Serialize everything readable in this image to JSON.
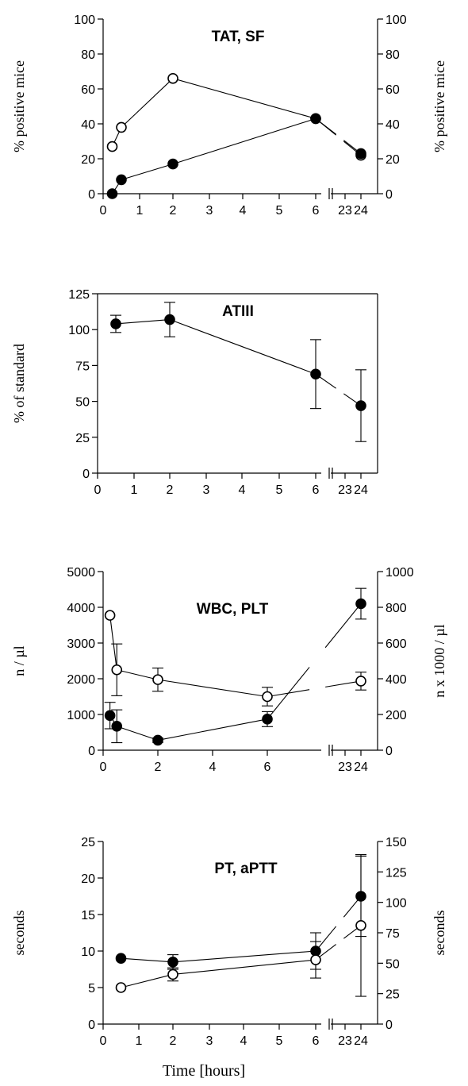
{
  "chart_data": [
    {
      "type": "line",
      "title": "TAT, SF",
      "ylabel": "% positive mice",
      "ylabel_right": "% positive mice",
      "ylim": [
        0,
        100
      ],
      "ylim_right": [
        0,
        100
      ],
      "yticks": [
        0,
        20,
        40,
        60,
        80,
        100
      ],
      "yticks_right": [
        0,
        20,
        40,
        60,
        80,
        100
      ],
      "xticks": [
        0,
        1,
        2,
        3,
        4,
        5,
        6,
        23,
        24
      ],
      "series": [
        {
          "marker": "open",
          "x": [
            0.25,
            0.5,
            2,
            6,
            24
          ],
          "y": [
            27,
            38,
            66,
            43,
            22
          ]
        },
        {
          "marker": "filled",
          "x": [
            0.25,
            0.5,
            2,
            6,
            24
          ],
          "y": [
            0,
            8,
            17,
            43,
            23
          ]
        }
      ]
    },
    {
      "type": "line",
      "title": "ATIII",
      "ylabel": "% of standard",
      "ylim": [
        0,
        125
      ],
      "yticks": [
        0,
        25,
        50,
        75,
        100,
        125
      ],
      "xticks": [
        0,
        1,
        2,
        3,
        4,
        5,
        6,
        23,
        24
      ],
      "series": [
        {
          "marker": "filled",
          "x": [
            0.5,
            2,
            6,
            24
          ],
          "y": [
            104,
            107,
            69,
            47
          ],
          "err": [
            6,
            12,
            24,
            25
          ]
        }
      ]
    },
    {
      "type": "line",
      "title": "WBC, PLT",
      "ylabel": "n / µl",
      "ylabel_right": "n x 1000 / µl",
      "ylim": [
        0,
        5000
      ],
      "ylim_right": [
        0,
        1000
      ],
      "yticks": [
        0,
        1000,
        2000,
        3000,
        4000,
        5000
      ],
      "yticks_right": [
        0,
        200,
        400,
        600,
        800,
        1000
      ],
      "xticks": [
        0,
        2,
        4,
        6,
        23,
        24
      ],
      "series": [
        {
          "marker": "filled",
          "axis": "left",
          "x": [
            0.25,
            0.5,
            2,
            6,
            24
          ],
          "y": [
            970,
            670,
            280,
            870,
            4100
          ],
          "err": [
            370,
            460,
            60,
            210,
            430
          ]
        },
        {
          "marker": "open",
          "axis": "right",
          "x": [
            0.25,
            0.5,
            2,
            6,
            24
          ],
          "y": [
            755,
            450,
            395,
            300,
            387
          ],
          "err": [
            0,
            145,
            65,
            52,
            50
          ]
        }
      ]
    },
    {
      "type": "line",
      "title": "PT, aPTT",
      "ylabel": "seconds",
      "ylabel_right": "seconds",
      "ylim": [
        0,
        25
      ],
      "ylim_right": [
        0,
        150
      ],
      "yticks": [
        0,
        5,
        10,
        15,
        20,
        25
      ],
      "yticks_right": [
        0,
        25,
        50,
        75,
        100,
        125,
        150
      ],
      "xticks": [
        0,
        1,
        2,
        3,
        4,
        5,
        6,
        23,
        24
      ],
      "series": [
        {
          "marker": "filled",
          "axis": "left",
          "x": [
            0.5,
            2,
            6,
            24
          ],
          "y": [
            9,
            8.5,
            10,
            17.5
          ],
          "err": [
            0,
            1,
            2.5,
            5.5
          ]
        },
        {
          "marker": "open",
          "axis": "left",
          "x": [
            0.5,
            2,
            6,
            24
          ],
          "y": [
            5,
            6.8,
            8.8,
            13.5
          ],
          "err": [
            0,
            0.9,
            2.5,
            9.7
          ]
        }
      ]
    }
  ],
  "xlabel": "Time [hours]"
}
